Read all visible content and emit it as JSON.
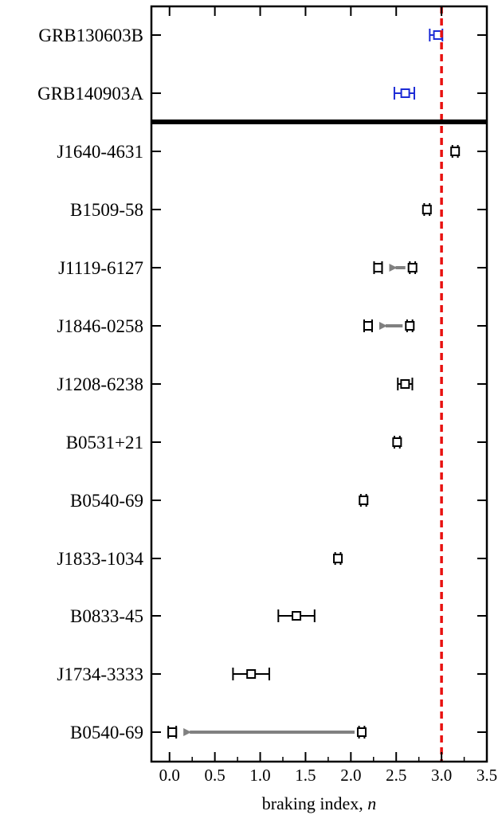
{
  "chart_data": {
    "type": "scatter",
    "xlabel": "braking index, ",
    "xlabel_italic": "n",
    "xlim": [
      -0.2,
      3.5
    ],
    "xticks": [
      "0.0",
      "0.5",
      "1.0",
      "1.5",
      "2.0",
      "2.5",
      "3.0",
      "3.5"
    ],
    "reference_line": {
      "x": 3.0,
      "color": "#e8100f",
      "style": "dashed"
    },
    "grb_color": "#1c2bd6",
    "pulsar_color": "#000000",
    "arrow_color": "#808080",
    "rows": [
      {
        "label": "GRB130603B",
        "group": "GRB",
        "value": 2.96,
        "err_lo": 0.09,
        "err_hi": 0.05
      },
      {
        "label": "GRB140903A",
        "group": "GRB",
        "value": 2.6,
        "err_lo": 0.12,
        "err_hi": 0.1
      },
      {
        "label": "J1640-4631",
        "group": "pulsar",
        "value": 3.15,
        "err_lo": 0.03,
        "err_hi": 0.03
      },
      {
        "label": "B1509-58",
        "group": "pulsar",
        "value": 2.839,
        "err_lo": 0.03,
        "err_hi": 0.03
      },
      {
        "label": "J1119-6127",
        "group": "pulsar",
        "value": 2.68,
        "err_lo": 0.03,
        "err_hi": 0.03,
        "arrow_to": 2.3
      },
      {
        "label": "J1846-0258",
        "group": "pulsar",
        "value": 2.65,
        "err_lo": 0.03,
        "err_hi": 0.03,
        "arrow_to": 2.19
      },
      {
        "label": "J1208-6238",
        "group": "pulsar",
        "value": 2.598,
        "err_lo": 0.08,
        "err_hi": 0.08
      },
      {
        "label": "B0531+21",
        "group": "pulsar",
        "value": 2.51,
        "err_lo": 0.03,
        "err_hi": 0.03
      },
      {
        "label": "B0540-69",
        "group": "pulsar",
        "value": 2.14,
        "err_lo": 0.03,
        "err_hi": 0.03
      },
      {
        "label": "J1833-1034",
        "group": "pulsar",
        "value": 1.857,
        "err_lo": 0.03,
        "err_hi": 0.03
      },
      {
        "label": "B0833-45",
        "group": "pulsar",
        "value": 1.4,
        "err_lo": 0.2,
        "err_hi": 0.2
      },
      {
        "label": "J1734-3333",
        "group": "pulsar",
        "value": 0.9,
        "err_lo": 0.2,
        "err_hi": 0.2
      },
      {
        "label": "B0540-69",
        "group": "pulsar",
        "value": 2.12,
        "err_lo": 0.03,
        "err_hi": 0.03,
        "arrow_to": 0.03
      }
    ]
  }
}
